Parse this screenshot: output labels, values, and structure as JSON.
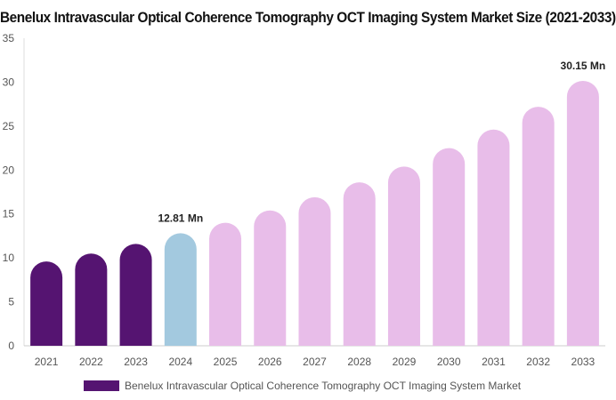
{
  "chart_data": {
    "type": "bar",
    "title": "Benelux Intravascular Optical Coherence Tomography OCT Imaging System Market Size (2021-2033)",
    "categories": [
      "2021",
      "2022",
      "2023",
      "2024",
      "2025",
      "2026",
      "2027",
      "2028",
      "2029",
      "2030",
      "2031",
      "2032",
      "2033"
    ],
    "series": [
      {
        "name": "Benelux Intravascular Optical Coherence Tomography OCT Imaging System Market",
        "values": [
          9.6,
          10.5,
          11.6,
          12.81,
          14.0,
          15.4,
          16.9,
          18.6,
          20.4,
          22.5,
          24.6,
          27.2,
          30.15
        ]
      }
    ],
    "bar_colors": [
      "#551471",
      "#551471",
      "#551471",
      "#a3c9df",
      "#e8bde9",
      "#e8bde9",
      "#e8bde9",
      "#e8bde9",
      "#e8bde9",
      "#e8bde9",
      "#e8bde9",
      "#e8bde9",
      "#e8bde9"
    ],
    "data_labels": [
      {
        "index": 3,
        "text": "12.81 Mn"
      },
      {
        "index": 12,
        "text": "30.15 Mn"
      }
    ],
    "yticks": [
      "0",
      "5",
      "10",
      "15",
      "20",
      "25",
      "30",
      "35"
    ],
    "ylim": [
      0,
      35
    ],
    "xlabel": "",
    "ylabel": "",
    "grid": false,
    "legend_position": "bottom",
    "legend_color": "#551471"
  }
}
